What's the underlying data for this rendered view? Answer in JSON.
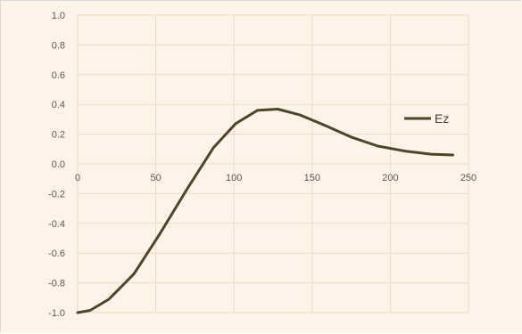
{
  "chart_data": {
    "type": "line",
    "title": "",
    "xlabel": "",
    "ylabel": "",
    "xlim": [
      0,
      250
    ],
    "ylim": [
      -1.0,
      1.0
    ],
    "x_ticks": [
      0,
      50,
      100,
      150,
      200,
      250
    ],
    "x_tick_labels": [
      "0",
      "50",
      "100",
      "150",
      "200",
      "250"
    ],
    "y_ticks": [
      1.0,
      0.8,
      0.6,
      0.4,
      0.2,
      0.0,
      -0.2,
      -0.4,
      -0.6,
      -0.8,
      -1.0
    ],
    "y_tick_labels": [
      "1.0",
      "0.8",
      "0.6",
      "0.4",
      "0.2",
      "0.0",
      "-0.2",
      "-0.4",
      "-0.6",
      "-0.8",
      "-1.0"
    ],
    "grid": true,
    "legend_position": "right",
    "background_color": "#fdf3e9",
    "grid_color": "#f0d9c4",
    "series": [
      {
        "name": "Ez",
        "color": "#4f4328",
        "x": [
          0,
          8,
          20,
          36,
          52,
          70,
          87,
          101,
          115,
          128,
          142,
          158,
          175,
          192,
          210,
          226,
          240
        ],
        "y": [
          -1.0,
          -0.985,
          -0.91,
          -0.74,
          -0.48,
          -0.17,
          0.11,
          0.27,
          0.36,
          0.368,
          0.33,
          0.26,
          0.18,
          0.12,
          0.085,
          0.065,
          0.06
        ]
      }
    ]
  }
}
